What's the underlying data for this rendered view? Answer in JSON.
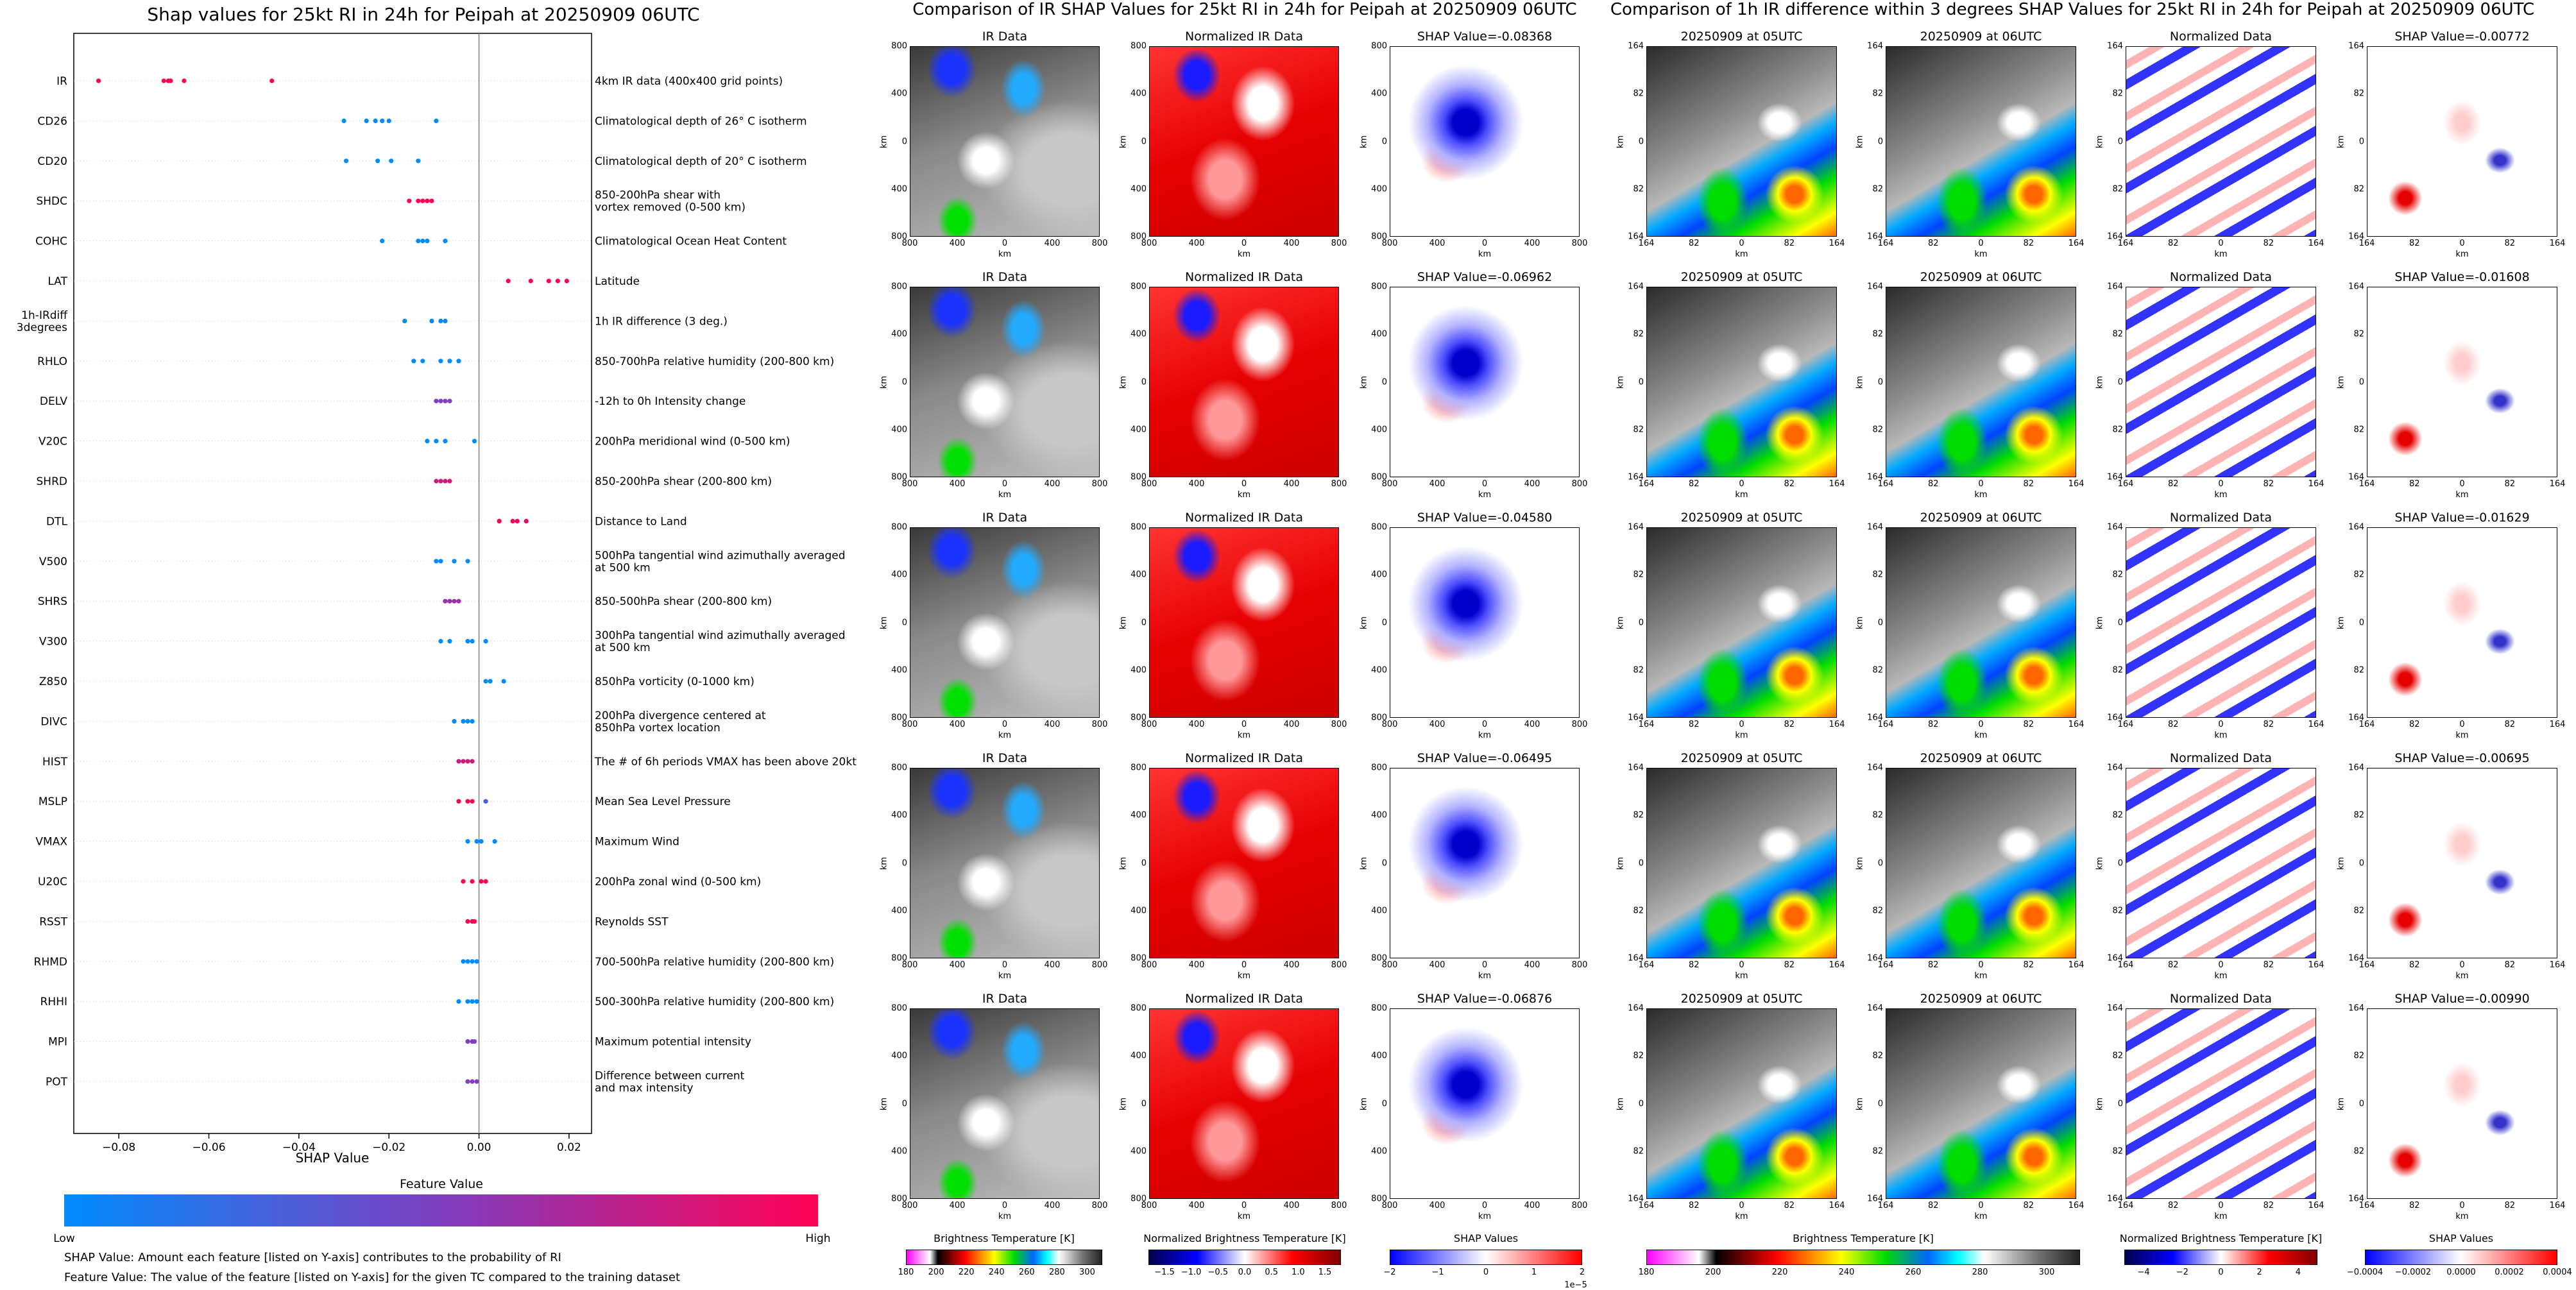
{
  "chart_data": [
    {
      "type": "scatter",
      "title": "Shap values for 25kt RI in 24h for Peipah at 20250909 06UTC",
      "xlabel": "SHAP Value",
      "xlim": [
        -0.09,
        0.025
      ],
      "xticks": [
        -0.08,
        -0.06,
        -0.04,
        -0.02,
        0.0,
        0.02
      ],
      "xtick_labels": [
        "−0.08",
        "−0.06",
        "−0.04",
        "−0.02",
        "0.00",
        "0.02"
      ],
      "colorbar": {
        "title": "Feature Value",
        "low": "Low",
        "high": "High",
        "colors": [
          "#008bfb",
          "#7f3fc0",
          "#ff0052"
        ]
      },
      "features": [
        {
          "name": "IR",
          "desc": "4km IR data (400x400 grid points)",
          "points": [
            [
              -0.0845,
              1
            ],
            [
              -0.07,
              1
            ],
            [
              -0.069,
              1
            ],
            [
              -0.0685,
              1
            ],
            [
              -0.0655,
              1
            ],
            [
              -0.046,
              1
            ]
          ]
        },
        {
          "name": "CD26",
          "desc": "Climatological depth of 26° C isotherm",
          "points": [
            [
              -0.03,
              0
            ],
            [
              -0.025,
              0
            ],
            [
              -0.023,
              0
            ],
            [
              -0.0215,
              0
            ],
            [
              -0.02,
              0
            ],
            [
              -0.0095,
              0
            ]
          ]
        },
        {
          "name": "CD20",
          "desc": "Climatological depth of 20° C isotherm",
          "points": [
            [
              -0.0295,
              0
            ],
            [
              -0.0225,
              0
            ],
            [
              -0.0195,
              0
            ],
            [
              -0.0135,
              0
            ]
          ]
        },
        {
          "name": "SHDC",
          "desc": "850-200hPa shear with vortex removed (0-500 km)",
          "points": [
            [
              -0.0155,
              1
            ],
            [
              -0.0135,
              1
            ],
            [
              -0.0125,
              1
            ],
            [
              -0.0115,
              1
            ],
            [
              -0.0105,
              1
            ]
          ]
        },
        {
          "name": "COHC",
          "desc": "Climatological Ocean Heat Content",
          "points": [
            [
              -0.0215,
              0
            ],
            [
              -0.0135,
              0
            ],
            [
              -0.0125,
              0
            ],
            [
              -0.0115,
              0
            ],
            [
              -0.0075,
              0
            ]
          ]
        },
        {
          "name": "LAT",
          "desc": "Latitude",
          "points": [
            [
              0.0065,
              1
            ],
            [
              0.0115,
              1
            ],
            [
              0.0155,
              1
            ],
            [
              0.0175,
              1
            ],
            [
              0.0195,
              1
            ]
          ]
        },
        {
          "name": "1h-IRdiff\n3degrees",
          "desc": "1h IR difference (3 deg.)",
          "points": [
            [
              -0.0165,
              0
            ],
            [
              -0.0105,
              0
            ],
            [
              -0.0085,
              0
            ],
            [
              -0.0075,
              0
            ]
          ]
        },
        {
          "name": "RHLO",
          "desc": "850-700hPa relative humidity (200-800 km)",
          "points": [
            [
              -0.0145,
              0
            ],
            [
              -0.0125,
              0
            ],
            [
              -0.0085,
              0
            ],
            [
              -0.0065,
              0
            ],
            [
              -0.0045,
              0
            ]
          ]
        },
        {
          "name": "DELV",
          "desc": "-12h to 0h Intensity change",
          "points": [
            [
              -0.0095,
              0.5
            ],
            [
              -0.0085,
              0.5
            ],
            [
              -0.0075,
              0.5
            ],
            [
              -0.0065,
              0.5
            ]
          ]
        },
        {
          "name": "V20C",
          "desc": "200hPa meridional wind (0-500 km)",
          "points": [
            [
              -0.0115,
              0
            ],
            [
              -0.0095,
              0
            ],
            [
              -0.0075,
              0
            ],
            [
              -0.001,
              0
            ]
          ]
        },
        {
          "name": "SHRD",
          "desc": "850-200hPa shear (200-800 km)",
          "points": [
            [
              -0.0095,
              0.8
            ],
            [
              -0.0085,
              0.8
            ],
            [
              -0.0075,
              0.8
            ],
            [
              -0.0065,
              0.8
            ]
          ]
        },
        {
          "name": "DTL",
          "desc": "Distance to Land",
          "points": [
            [
              0.0045,
              1
            ],
            [
              0.0075,
              1
            ],
            [
              0.0085,
              1
            ],
            [
              0.0105,
              1
            ]
          ]
        },
        {
          "name": "V500",
          "desc": "500hPa tangential wind azimuthally averaged at 500 km",
          "points": [
            [
              -0.0095,
              0
            ],
            [
              -0.0085,
              0
            ],
            [
              -0.0055,
              0
            ],
            [
              -0.0025,
              0
            ]
          ]
        },
        {
          "name": "SHRS",
          "desc": "850-500hPa shear (200-800 km)",
          "points": [
            [
              -0.0075,
              0.6
            ],
            [
              -0.0065,
              0.6
            ],
            [
              -0.0055,
              0.6
            ],
            [
              -0.0045,
              0.6
            ]
          ]
        },
        {
          "name": "V300",
          "desc": "300hPa tangential wind azimuthally averaged at 500 km",
          "points": [
            [
              -0.0085,
              0
            ],
            [
              -0.0065,
              0
            ],
            [
              -0.0025,
              0
            ],
            [
              -0.0015,
              0
            ],
            [
              0.0015,
              0
            ]
          ]
        },
        {
          "name": "Z850",
          "desc": "850hPa vorticity (0-1000 km)",
          "points": [
            [
              0.0015,
              0
            ],
            [
              0.0025,
              0
            ],
            [
              0.0055,
              0
            ]
          ]
        },
        {
          "name": "DIVC",
          "desc": "200hPa divergence centered at 850hPa vortex location",
          "points": [
            [
              -0.0055,
              0
            ],
            [
              -0.0035,
              0
            ],
            [
              -0.0025,
              0
            ],
            [
              -0.0015,
              0
            ]
          ]
        },
        {
          "name": "HIST",
          "desc": "The # of 6h periods VMAX has been above 20kt",
          "points": [
            [
              -0.0045,
              0.8
            ],
            [
              -0.0035,
              0.8
            ],
            [
              -0.0025,
              0.8
            ],
            [
              -0.0015,
              0.8
            ]
          ]
        },
        {
          "name": "MSLP",
          "desc": "Mean Sea Level Pressure",
          "points": [
            [
              -0.0045,
              1
            ],
            [
              -0.0025,
              1
            ],
            [
              -0.0015,
              1
            ],
            [
              0.0015,
              0.3
            ]
          ]
        },
        {
          "name": "VMAX",
          "desc": "Maximum Wind",
          "points": [
            [
              -0.0025,
              0
            ],
            [
              -0.0005,
              0
            ],
            [
              0.0005,
              0
            ],
            [
              0.0035,
              0
            ]
          ]
        },
        {
          "name": "U20C",
          "desc": "200hPa zonal wind (0-500 km)",
          "points": [
            [
              -0.0035,
              1
            ],
            [
              -0.0015,
              1
            ],
            [
              0.0005,
              1
            ],
            [
              0.0015,
              1
            ]
          ]
        },
        {
          "name": "RSST",
          "desc": "Reynolds SST",
          "points": [
            [
              -0.0025,
              1
            ],
            [
              -0.0015,
              1
            ],
            [
              -0.001,
              1
            ]
          ]
        },
        {
          "name": "RHMD",
          "desc": "700-500hPa relative humidity (200-800 km)",
          "points": [
            [
              -0.0035,
              0
            ],
            [
              -0.0025,
              0
            ],
            [
              -0.0015,
              0
            ],
            [
              -0.0005,
              0
            ]
          ]
        },
        {
          "name": "RHHI",
          "desc": "500-300hPa relative humidity (200-800 km)",
          "points": [
            [
              -0.0045,
              0
            ],
            [
              -0.0025,
              0
            ],
            [
              -0.0015,
              0
            ],
            [
              -0.0005,
              0
            ]
          ]
        },
        {
          "name": "MPI",
          "desc": "Maximum potential intensity",
          "points": [
            [
              -0.0025,
              0.5
            ],
            [
              -0.0015,
              0.5
            ],
            [
              -0.001,
              0.5
            ]
          ]
        },
        {
          "name": "POT",
          "desc": "Difference between current and max intensity",
          "points": [
            [
              -0.0025,
              0.5
            ],
            [
              -0.0015,
              0.5
            ],
            [
              -0.0005,
              0.5
            ]
          ]
        }
      ]
    },
    {
      "type": "heatmap",
      "title": "Comparison of IR SHAP Values for 25kt RI in 24h for Peipah at 20250909 06UTC",
      "columns": [
        "IR Data",
        "Normalized IR Data",
        "SHAP Value"
      ],
      "shap_values": [
        "-0.08368",
        "-0.06962",
        "-0.04580",
        "-0.06495",
        "-0.06876"
      ],
      "xlabel": "km",
      "ylabel": "km",
      "xtick_labels": [
        "800",
        "400",
        "0",
        "400",
        "800"
      ],
      "ytick_labels": [
        "800",
        "400",
        "0",
        "400",
        "800"
      ],
      "colorbars": [
        {
          "title": "Brightness Temperature [K]",
          "ticks": [
            "180",
            "200",
            "220",
            "240",
            "260",
            "280",
            "300"
          ],
          "range": [
            180,
            310
          ]
        },
        {
          "title": "Normalized Brightness Temperature [K]",
          "ticks": [
            "−1.5",
            "−1.0",
            "−0.5",
            "0.0",
            "0.5",
            "1.0",
            "1.5"
          ],
          "range": [
            -1.8,
            1.8
          ]
        },
        {
          "title": "SHAP Values",
          "ticks": [
            "−2",
            "−1",
            "0",
            "1",
            "2"
          ],
          "range": [
            -2,
            2
          ],
          "scale": "1e−5"
        }
      ]
    },
    {
      "type": "heatmap",
      "title": "Comparison of 1h IR difference within 3 degrees SHAP Values for 25kt RI in 24h for Peipah at 20250909 06UTC",
      "columns": [
        "20250909 at 05UTC",
        "20250909 at 06UTC",
        "Normalized Data",
        "SHAP Value"
      ],
      "shap_values": [
        "-0.00772",
        "-0.01608",
        "-0.01629",
        "-0.00695",
        "-0.00990"
      ],
      "xlabel": "km",
      "ylabel": "km",
      "xtick_labels": [
        "164",
        "82",
        "0",
        "82",
        "164"
      ],
      "ytick_labels": [
        "164",
        "82",
        "0",
        "82",
        "164"
      ],
      "colorbars": [
        {
          "title": "Brightness Temperature [K]",
          "ticks": [
            "180",
            "200",
            "220",
            "240",
            "260",
            "280",
            "300"
          ],
          "range": [
            180,
            310
          ]
        },
        {
          "title": "Normalized Brightness Temperature [K]",
          "ticks": [
            "−4",
            "−2",
            "0",
            "2",
            "4"
          ],
          "range": [
            -5,
            5
          ]
        },
        {
          "title": "SHAP Values",
          "ticks": [
            "−0.0004",
            "−0.0002",
            "0.0000",
            "0.0002",
            "0.0004"
          ],
          "range": [
            -0.0004,
            0.0004
          ]
        }
      ]
    }
  ],
  "notes": {
    "line1": "SHAP Value: Amount each feature [listed on Y-axis] contributes to the probability of RI",
    "line2": "Feature Value: The value of the feature [listed on Y-axis] for the given TC compared to the training dataset"
  }
}
